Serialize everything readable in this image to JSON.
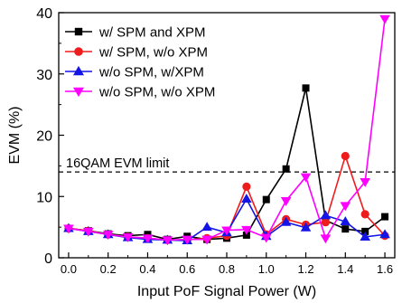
{
  "chart_data": {
    "type": "line",
    "title": "",
    "xlabel": "Input PoF Signal Power (W)",
    "ylabel": "EVM (%)",
    "xlim": [
      -0.05,
      1.65
    ],
    "ylim": [
      0,
      40
    ],
    "xticks": [
      "0.0",
      "0.2",
      "0.4",
      "0.6",
      "0.8",
      "1.0",
      "1.2",
      "1.4",
      "1.6"
    ],
    "yticks": [
      "0",
      "10",
      "20",
      "30",
      "40"
    ],
    "grid": false,
    "legend_position": "top-left",
    "x": [
      0.0,
      0.1,
      0.2,
      0.3,
      0.4,
      0.5,
      0.6,
      0.7,
      0.8,
      0.9,
      1.0,
      1.1,
      1.2,
      1.3,
      1.4,
      1.5,
      1.6
    ],
    "series": [
      {
        "name": "w/ SPM and XPM",
        "color": "#000000",
        "marker": "square",
        "values": [
          4.8,
          4.4,
          3.9,
          3.6,
          3.8,
          3.0,
          3.5,
          3.0,
          3.2,
          3.7,
          9.5,
          14.5,
          27.7,
          6.1,
          4.7,
          4.3,
          6.7
        ]
      },
      {
        "name": "w/ SPM, w/o XPM",
        "color": "#ee1c1c",
        "marker": "circle",
        "values": [
          4.8,
          4.4,
          3.8,
          3.4,
          3.2,
          2.9,
          2.9,
          3.2,
          3.6,
          11.6,
          3.8,
          6.3,
          5.4,
          5.8,
          16.6,
          7.1,
          3.6
        ]
      },
      {
        "name": "w/o SPM, w/XPM",
        "color": "#1414e6",
        "marker": "triangle-up",
        "values": [
          4.8,
          4.3,
          3.8,
          3.3,
          3.0,
          2.9,
          2.8,
          5.0,
          4.1,
          9.6,
          3.5,
          5.8,
          4.9,
          6.9,
          5.9,
          3.4,
          3.8
        ]
      },
      {
        "name": "w/o SPM, w/o XPM",
        "color": "#ff00ff",
        "marker": "triangle-down",
        "values": [
          4.8,
          4.3,
          3.8,
          3.4,
          3.2,
          2.9,
          3.0,
          3.0,
          4.5,
          4.6,
          3.3,
          9.3,
          13.2,
          3.2,
          8.5,
          12.4,
          39.0
        ]
      }
    ],
    "annotations": [
      {
        "text": "16QAM EVM limit",
        "y": 14,
        "style": "dashed-line"
      }
    ]
  }
}
